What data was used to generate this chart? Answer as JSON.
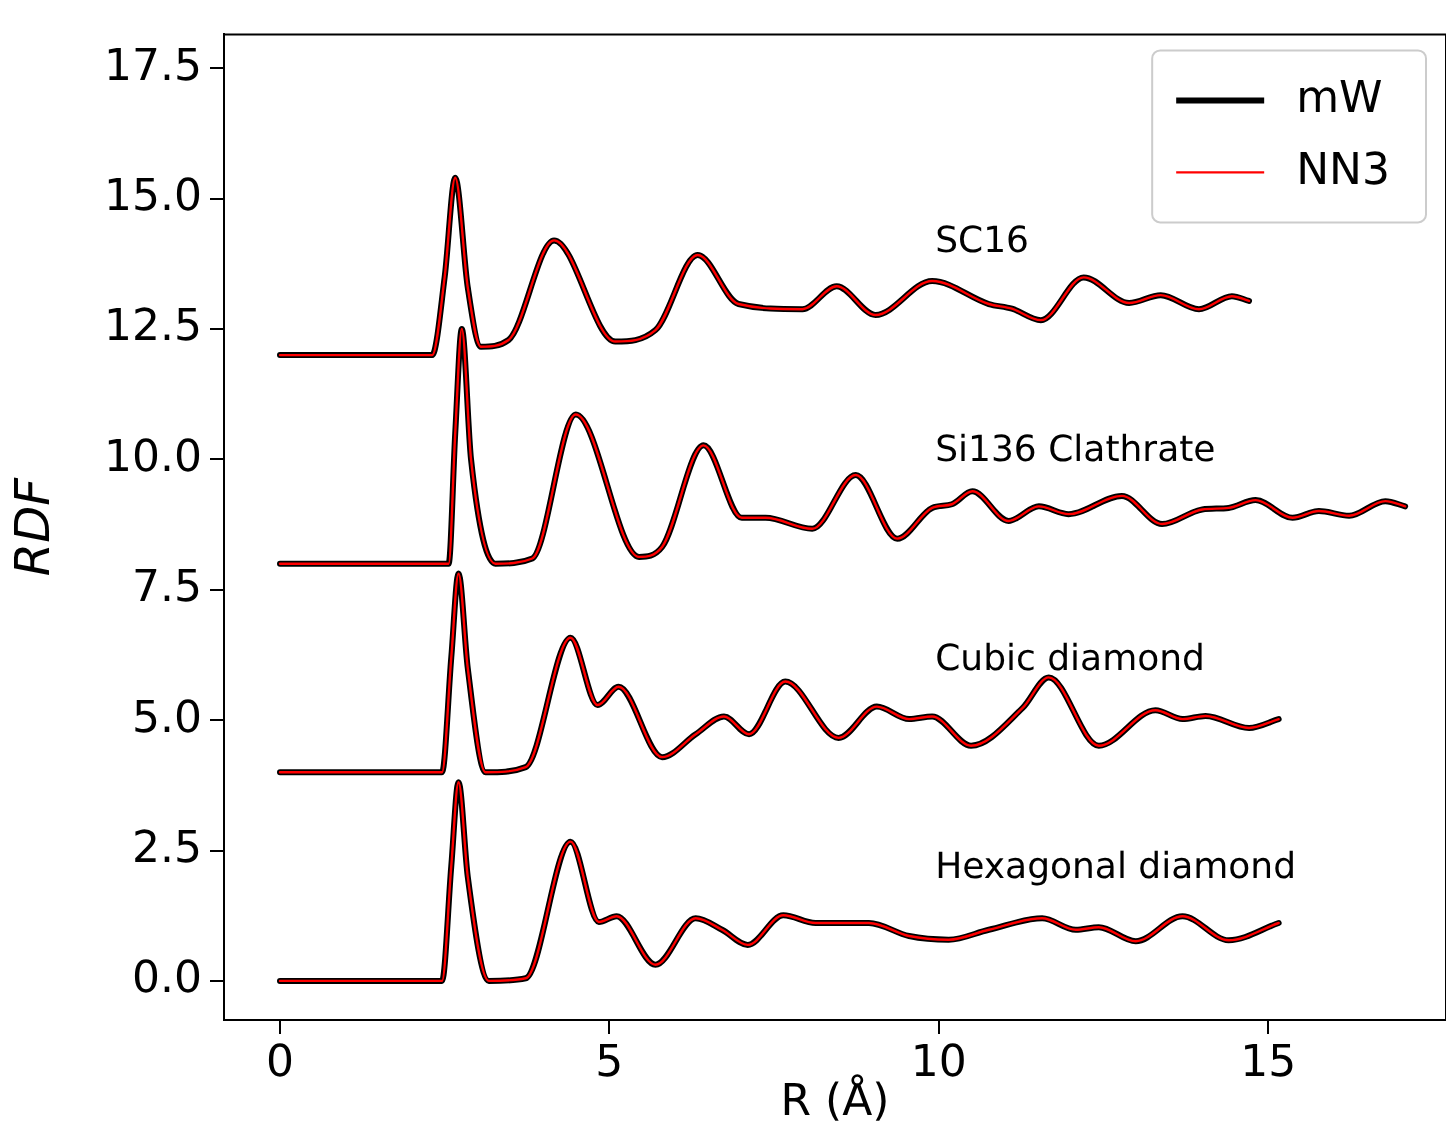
{
  "chart_data": {
    "type": "line",
    "xlabel": "R (Å)",
    "ylabel": "RDF",
    "xlim": [
      -0.85,
      17.7
    ],
    "ylim": [
      -0.75,
      18.15
    ],
    "xticks": [
      0,
      5,
      10,
      15
    ],
    "yticks": [
      {
        "value": 0,
        "label": "0.0"
      },
      {
        "value": 2.5,
        "label": "2.5"
      },
      {
        "value": 5,
        "label": "5.0"
      },
      {
        "value": 7.5,
        "label": "7.5"
      },
      {
        "value": 10,
        "label": "10.0"
      },
      {
        "value": 12.5,
        "label": "12.5"
      },
      {
        "value": 15,
        "label": "15.0"
      },
      {
        "value": 17.5,
        "label": "17.5"
      }
    ],
    "grid": false,
    "legend": "top right",
    "marker": "none",
    "line_style": "solid",
    "annotations": [
      "SC16",
      "Si136 Clathrate",
      "Cubic diamond",
      "Hexagonal diamond"
    ],
    "series": [
      {
        "name": "mW",
        "color": "#000000",
        "x": [
          0,
          2.31,
          2.5,
          2.66,
          2.85,
          3.05,
          3.47,
          4.16,
          5.09,
          5.7,
          6.34,
          6.96,
          7.93,
          8.45,
          9.04,
          9.9,
          10.76,
          11.11,
          11.55,
          12.2,
          12.89,
          13.37,
          13.95,
          14.45,
          14.71
        ],
        "values": [
          12,
          12,
          13.5,
          15.4,
          13.3,
          12.16,
          12.29,
          14.2,
          12.26,
          12.48,
          13.92,
          12.98,
          12.88,
          13.32,
          12.77,
          13.42,
          12.98,
          12.89,
          12.67,
          13.49,
          13.0,
          13.15,
          12.88,
          13.13,
          13.04
        ]
      },
      {
        "color": "#000000",
        "x": [
          0,
          2.56,
          2.66,
          2.76,
          2.9,
          3.27,
          3.83,
          4.49,
          5.45,
          5.8,
          6.43,
          7.01,
          7.37,
          8.08,
          8.74,
          9.37,
          9.9,
          10.2,
          10.51,
          11.06,
          11.52,
          11.97,
          12.78,
          13.39,
          14.0,
          14.4,
          14.81,
          15.37,
          15.77,
          16.23,
          16.78,
          17.08
        ],
        "values": [
          8,
          8,
          10.5,
          12.5,
          10.0,
          8,
          8.1,
          10.86,
          8.13,
          8.32,
          10.27,
          8.88,
          8.88,
          8.67,
          9.7,
          8.48,
          9.07,
          9.14,
          9.39,
          8.82,
          9.1,
          8.95,
          9.3,
          8.76,
          9.04,
          9.07,
          9.22,
          8.88,
          9.01,
          8.92,
          9.2,
          9.1
        ]
      },
      {
        "color": "#000000",
        "x": [
          0,
          2.46,
          2.6,
          2.71,
          2.85,
          3.12,
          3.73,
          4.41,
          4.82,
          5.14,
          5.8,
          6.31,
          6.74,
          7.12,
          7.67,
          8.48,
          9.06,
          9.55,
          9.9,
          10.49,
          11.27,
          11.67,
          12.43,
          13.29,
          13.7,
          14.05,
          14.71,
          15.16
        ],
        "values": [
          4,
          4,
          6.2,
          7.81,
          6.0,
          4,
          4.1,
          6.58,
          5.29,
          5.64,
          4.29,
          4.73,
          5.07,
          4.73,
          5.74,
          4.66,
          5.26,
          5.02,
          5.07,
          4.51,
          5.23,
          5.82,
          4.51,
          5.19,
          5.02,
          5.08,
          4.85,
          5.02
        ]
      },
      {
        "color": "#000000",
        "x": [
          0,
          2.46,
          2.6,
          2.71,
          2.85,
          3.17,
          3.73,
          4.41,
          4.84,
          5.11,
          5.7,
          6.31,
          6.71,
          7.1,
          7.64,
          8.13,
          8.94,
          9.55,
          10.15,
          10.76,
          11.57,
          12.08,
          12.43,
          12.99,
          13.7,
          14.4,
          15.16
        ],
        "values": [
          0,
          0,
          2.2,
          3.81,
          2.0,
          0,
          0.05,
          2.67,
          1.13,
          1.24,
          0.31,
          1.2,
          0.98,
          0.69,
          1.26,
          1.11,
          1.11,
          0.86,
          0.79,
          0.98,
          1.2,
          0.98,
          1.03,
          0.76,
          1.24,
          0.78,
          1.11
        ]
      },
      {
        "name": "NN3",
        "color": "#ff0000",
        "x": [
          0,
          2.31,
          2.5,
          2.66,
          2.85,
          3.05,
          3.47,
          4.16,
          5.09,
          5.7,
          6.34,
          6.96,
          7.93,
          8.45,
          9.04,
          9.9,
          10.76,
          11.11,
          11.55,
          12.2,
          12.89,
          13.37,
          13.95,
          14.45,
          14.71
        ],
        "values": [
          12,
          12,
          13.5,
          15.4,
          13.3,
          12.16,
          12.29,
          14.2,
          12.26,
          12.48,
          13.92,
          12.98,
          12.88,
          13.32,
          12.77,
          13.42,
          12.98,
          12.89,
          12.67,
          13.49,
          13.0,
          13.15,
          12.88,
          13.13,
          13.04
        ]
      },
      {
        "color": "#ff0000",
        "x": [
          0,
          2.56,
          2.66,
          2.76,
          2.9,
          3.27,
          3.83,
          4.49,
          5.45,
          5.8,
          6.43,
          7.01,
          7.37,
          8.08,
          8.74,
          9.37,
          9.9,
          10.2,
          10.51,
          11.06,
          11.52,
          11.97,
          12.78,
          13.39,
          14.0,
          14.4,
          14.81,
          15.37,
          15.77,
          16.23,
          16.78,
          17.08
        ],
        "values": [
          8,
          8,
          10.5,
          12.5,
          10.0,
          8,
          8.1,
          10.86,
          8.13,
          8.32,
          10.27,
          8.88,
          8.88,
          8.67,
          9.7,
          8.48,
          9.07,
          9.14,
          9.39,
          8.82,
          9.1,
          8.95,
          9.3,
          8.76,
          9.04,
          9.07,
          9.22,
          8.88,
          9.01,
          8.92,
          9.2,
          9.1
        ]
      },
      {
        "color": "#ff0000",
        "x": [
          0,
          2.46,
          2.6,
          2.71,
          2.85,
          3.12,
          3.73,
          4.41,
          4.82,
          5.14,
          5.8,
          6.31,
          6.74,
          7.12,
          7.67,
          8.48,
          9.06,
          9.55,
          9.9,
          10.49,
          11.27,
          11.67,
          12.43,
          13.29,
          13.7,
          14.05,
          14.71,
          15.16
        ],
        "values": [
          4,
          4,
          6.2,
          7.81,
          6.0,
          4,
          4.1,
          6.58,
          5.29,
          5.64,
          4.29,
          4.73,
          5.07,
          4.73,
          5.74,
          4.66,
          5.26,
          5.02,
          5.07,
          4.51,
          5.23,
          5.82,
          4.51,
          5.19,
          5.02,
          5.08,
          4.85,
          5.02
        ]
      },
      {
        "color": "#ff0000",
        "x": [
          0,
          2.46,
          2.6,
          2.71,
          2.85,
          3.17,
          3.73,
          4.41,
          4.84,
          5.11,
          5.7,
          6.31,
          6.71,
          7.1,
          7.64,
          8.13,
          8.94,
          9.55,
          10.15,
          10.76,
          11.57,
          12.08,
          12.43,
          12.99,
          13.7,
          14.4,
          15.16
        ],
        "values": [
          0,
          0,
          2.2,
          3.81,
          2.0,
          0,
          0.05,
          2.67,
          1.13,
          1.24,
          0.31,
          1.2,
          0.98,
          0.69,
          1.26,
          1.11,
          1.11,
          0.86,
          0.79,
          0.98,
          1.2,
          0.98,
          1.03,
          0.76,
          1.24,
          0.78,
          1.11
        ]
      }
    ]
  }
}
